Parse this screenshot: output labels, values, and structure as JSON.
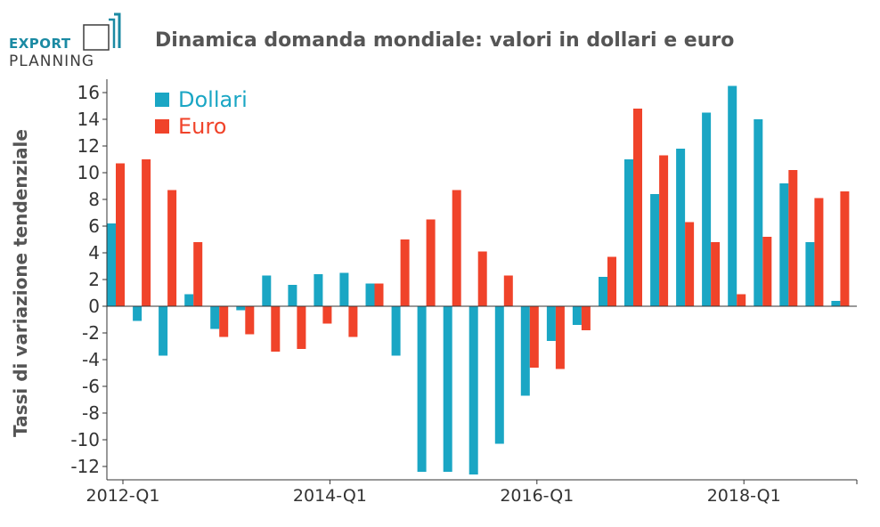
{
  "header": {
    "logo_line1": "EXPORT",
    "logo_line2": "PLANNING",
    "title": "Dinamica domanda mondiale: valori in dollari e euro"
  },
  "chart_data": {
    "type": "bar",
    "title": "Dinamica domanda mondiale: valori in dollari e euro",
    "xlabel": "",
    "ylabel": "Tassi di variazione tendenziale",
    "ylim": [
      -13,
      17
    ],
    "yticks": [
      -12,
      -10,
      -8,
      -6,
      -4,
      -2,
      0,
      2,
      4,
      6,
      8,
      10,
      12,
      14,
      16
    ],
    "grid": false,
    "legend_position": "top-left",
    "x_tick_labels": [
      {
        "index": 0,
        "label": "2012-Q1"
      },
      {
        "index": 8,
        "label": "2014-Q1"
      },
      {
        "index": 16,
        "label": "2016-Q1"
      },
      {
        "index": 24,
        "label": "2018-Q1"
      }
    ],
    "categories": [
      "2012-Q1",
      "2012-Q2",
      "2012-Q3",
      "2012-Q4",
      "2013-Q1",
      "2013-Q2",
      "2013-Q3",
      "2013-Q4",
      "2014-Q1",
      "2014-Q2",
      "2014-Q3",
      "2014-Q4",
      "2015-Q1",
      "2015-Q2",
      "2015-Q3",
      "2015-Q4",
      "2016-Q1",
      "2016-Q2",
      "2016-Q3",
      "2016-Q4",
      "2017-Q1",
      "2017-Q2",
      "2017-Q3",
      "2017-Q4",
      "2018-Q1",
      "2018-Q2",
      "2018-Q3",
      "2018-Q4",
      "2019-Q1"
    ],
    "series": [
      {
        "name": "Dollari",
        "color": "#1aa6c4",
        "values": [
          6.2,
          -1.1,
          -3.7,
          0.9,
          -1.7,
          -0.3,
          2.3,
          1.6,
          2.4,
          2.5,
          1.7,
          -3.7,
          -12.4,
          -12.4,
          -12.6,
          -10.3,
          -6.7,
          -2.6,
          -1.4,
          2.2,
          11.0,
          8.4,
          11.8,
          14.5,
          16.5,
          14.0,
          9.2,
          4.8,
          0.4
        ]
      },
      {
        "name": "Euro",
        "color": "#f0432a",
        "values": [
          10.7,
          11.0,
          8.7,
          4.8,
          -2.3,
          -2.1,
          -3.4,
          -3.2,
          -1.3,
          -2.3,
          1.7,
          5.0,
          6.5,
          8.7,
          4.1,
          2.3,
          -4.6,
          -4.7,
          -1.8,
          3.7,
          14.8,
          11.3,
          6.3,
          4.8,
          0.9,
          5.2,
          10.2,
          8.1,
          8.6
        ]
      }
    ]
  }
}
